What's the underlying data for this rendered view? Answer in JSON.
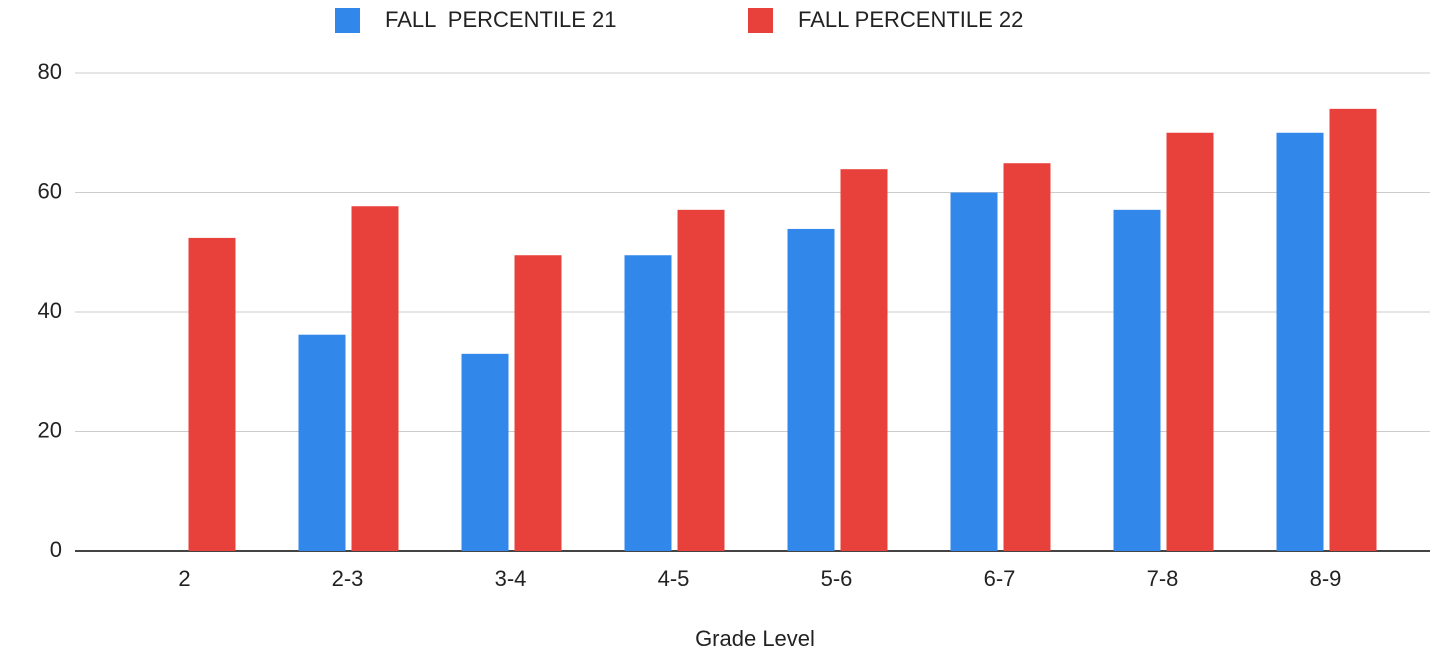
{
  "chart_data": {
    "type": "bar",
    "x_label": "Grade Level",
    "categories": [
      "2",
      "2-3",
      "3-4",
      "4-5",
      "5-6",
      "6-7",
      "7-8",
      "8-9"
    ],
    "series": [
      {
        "name": "FALL  PERCENTILE 21",
        "color": "#3287ea",
        "values": [
          null,
          36.2,
          33,
          49.5,
          53.9,
          60,
          57.1,
          70
        ]
      },
      {
        "name": "FALL PERCENTILE 22",
        "color": "#e8403a",
        "values": [
          52.4,
          57.7,
          49.5,
          57.1,
          63.9,
          64.9,
          70,
          74
        ]
      }
    ],
    "ylim": [
      0,
      80
    ],
    "yticks": [
      0,
      20,
      40,
      60,
      80
    ],
    "grid": true,
    "legend": "top"
  }
}
